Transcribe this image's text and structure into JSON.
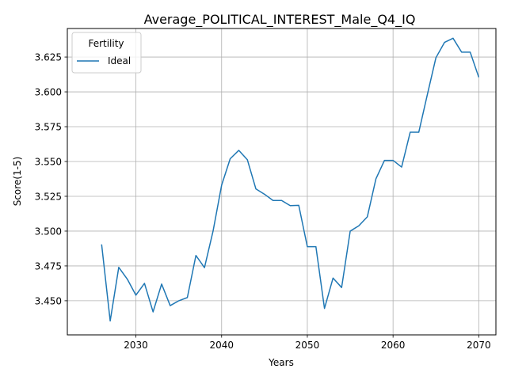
{
  "chart_data": {
    "type": "line",
    "title": "Average_POLITICAL_INTEREST_Male_Q4_IQ",
    "xlabel": "Years",
    "ylabel": "Score(1-5)",
    "xlim": [
      2022,
      2072
    ],
    "ylim": [
      3.4255,
      3.6455
    ],
    "x_ticks": [
      2030,
      2040,
      2050,
      2060,
      2070
    ],
    "y_ticks": [
      3.45,
      3.475,
      3.5,
      3.525,
      3.55,
      3.575,
      3.6,
      3.625
    ],
    "x_tick_labels": [
      "2030",
      "2040",
      "2050",
      "2060",
      "2070"
    ],
    "y_tick_labels": [
      "3.450",
      "3.475",
      "3.500",
      "3.525",
      "3.550",
      "3.575",
      "3.600",
      "3.625"
    ],
    "grid": true,
    "legend": {
      "title": "Fertility",
      "placement": "top-left",
      "entries": [
        "Ideal"
      ]
    },
    "series": [
      {
        "name": "Ideal",
        "color": "#1f77b4",
        "x": [
          2026,
          2027,
          2028,
          2029,
          2030,
          2031,
          2032,
          2033,
          2034,
          2035,
          2036,
          2037,
          2038,
          2039,
          2040,
          2041,
          2042,
          2043,
          2044,
          2045,
          2046,
          2047,
          2048,
          2049,
          2050,
          2051,
          2052,
          2053,
          2054,
          2055,
          2056,
          2057,
          2058,
          2059,
          2060,
          2061,
          2062,
          2063,
          2064,
          2065,
          2066,
          2067,
          2068,
          2069,
          2070
        ],
        "values": [
          3.4905,
          3.4355,
          3.474,
          3.4655,
          3.454,
          3.4625,
          3.442,
          3.462,
          3.4465,
          3.45,
          3.4523,
          3.4825,
          3.4738,
          3.5,
          3.533,
          3.552,
          3.558,
          3.5513,
          3.5303,
          3.5265,
          3.522,
          3.522,
          3.5183,
          3.5185,
          3.4888,
          3.4888,
          3.4445,
          3.4663,
          3.4595,
          3.5,
          3.5038,
          3.5103,
          3.5375,
          3.5508,
          3.5508,
          3.546,
          3.571,
          3.571,
          3.598,
          3.6245,
          3.6355,
          3.6385,
          3.6285,
          3.6285,
          3.6105
        ]
      }
    ]
  }
}
